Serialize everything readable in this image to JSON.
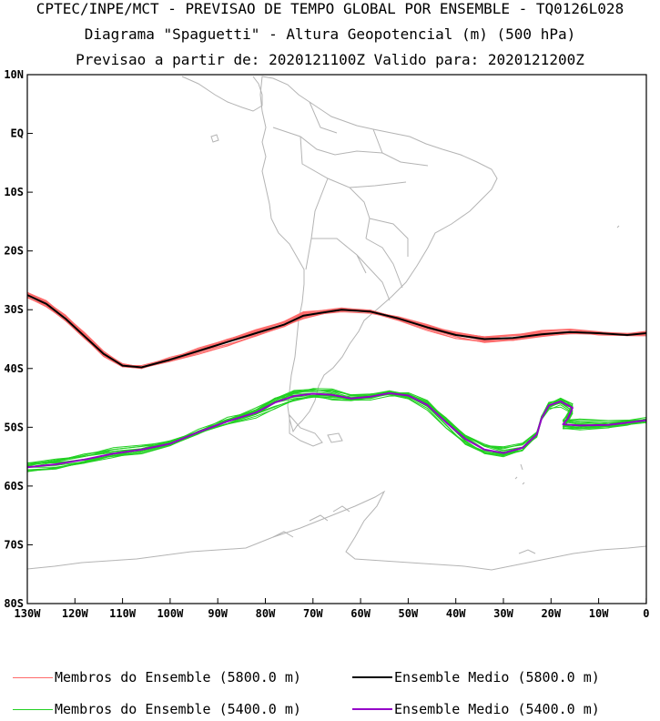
{
  "title": {
    "line1": "CPTEC/INPE/MCT - PREVISAO DE TEMPO GLOBAL POR ENSEMBLE - TQ0126L028",
    "line2": "Diagrama \"Spaguetti\" - Altura Geopotencial (m) (500 hPa)",
    "line3": "Previsao a partir de: 2020121100Z  Valido para: 2020121200Z"
  },
  "colors": {
    "members_5800": "#ff6a6a",
    "mean_5800": "#000000",
    "members_5400": "#22d022",
    "mean_5400": "#9400c8",
    "coastline": "#b4b4b4"
  },
  "axes": {
    "lat_ticks": [
      "10N",
      "EQ",
      "10S",
      "20S",
      "30S",
      "40S",
      "50S",
      "60S",
      "70S",
      "80S"
    ],
    "lon_ticks": [
      "130W",
      "120W",
      "110W",
      "100W",
      "90W",
      "80W",
      "70W",
      "60W",
      "50W",
      "40W",
      "30W",
      "20W",
      "10W",
      "0"
    ]
  },
  "legend": [
    {
      "label": "Membros do Ensemble (5800.0 m)",
      "color": "#ff6a6a",
      "weight": "thin"
    },
    {
      "label": "Ensemble Medio (5800.0 m)",
      "color": "#000000",
      "weight": "thick"
    },
    {
      "label": "Membros do Ensemble (5400.0 m)",
      "color": "#22d022",
      "weight": "thin"
    },
    {
      "label": "Ensemble Medio (5400.0 m)",
      "color": "#9400c8",
      "weight": "thick"
    }
  ],
  "contours": {
    "c5800_mean": [
      [
        -130,
        -27.5
      ],
      [
        -126,
        -29
      ],
      [
        -122,
        -31.5
      ],
      [
        -118,
        -34.5
      ],
      [
        -114,
        -37.5
      ],
      [
        -110,
        -39.5
      ],
      [
        -106,
        -39.8
      ],
      [
        -100,
        -38.5
      ],
      [
        -94,
        -37
      ],
      [
        -88,
        -35.5
      ],
      [
        -82,
        -34
      ],
      [
        -76,
        -32.5
      ],
      [
        -72,
        -31
      ],
      [
        -68,
        -30.5
      ],
      [
        -64,
        -30
      ],
      [
        -58,
        -30.3
      ],
      [
        -52,
        -31.5
      ],
      [
        -46,
        -33
      ],
      [
        -40,
        -34.3
      ],
      [
        -34,
        -35
      ],
      [
        -28,
        -34.8
      ],
      [
        -22,
        -34.2
      ],
      [
        -16,
        -33.8
      ],
      [
        -10,
        -34
      ],
      [
        -4,
        -34.3
      ],
      [
        0,
        -34
      ]
    ],
    "c5400_mean": [
      [
        -130,
        -56.8
      ],
      [
        -124,
        -56.3
      ],
      [
        -118,
        -55.5
      ],
      [
        -112,
        -54.5
      ],
      [
        -106,
        -53.8
      ],
      [
        -100,
        -52.8
      ],
      [
        -94,
        -50.8
      ],
      [
        -88,
        -49
      ],
      [
        -82,
        -47.5
      ],
      [
        -78,
        -45.8
      ],
      [
        -74,
        -44.7
      ],
      [
        -70,
        -44.3
      ],
      [
        -66,
        -44.5
      ],
      [
        -62,
        -45.1
      ],
      [
        -58,
        -44.8
      ],
      [
        -54,
        -44.2
      ],
      [
        -50,
        -44.6
      ],
      [
        -46,
        -46.2
      ],
      [
        -42,
        -49.2
      ],
      [
        -38,
        -52
      ],
      [
        -34,
        -53.8
      ],
      [
        -30,
        -54.4
      ],
      [
        -26,
        -53.5
      ],
      [
        -23,
        -51.2
      ],
      [
        -22,
        -48.5
      ],
      [
        -20.5,
        -46.3
      ],
      [
        -18,
        -45.6
      ],
      [
        -15.5,
        -46.7
      ],
      [
        -16.5,
        -48.5
      ],
      [
        -17.5,
        -49.5
      ],
      [
        -14,
        -49.7
      ],
      [
        -8,
        -49.6
      ],
      [
        -4,
        -49.2
      ],
      [
        0,
        -48.8
      ]
    ]
  }
}
